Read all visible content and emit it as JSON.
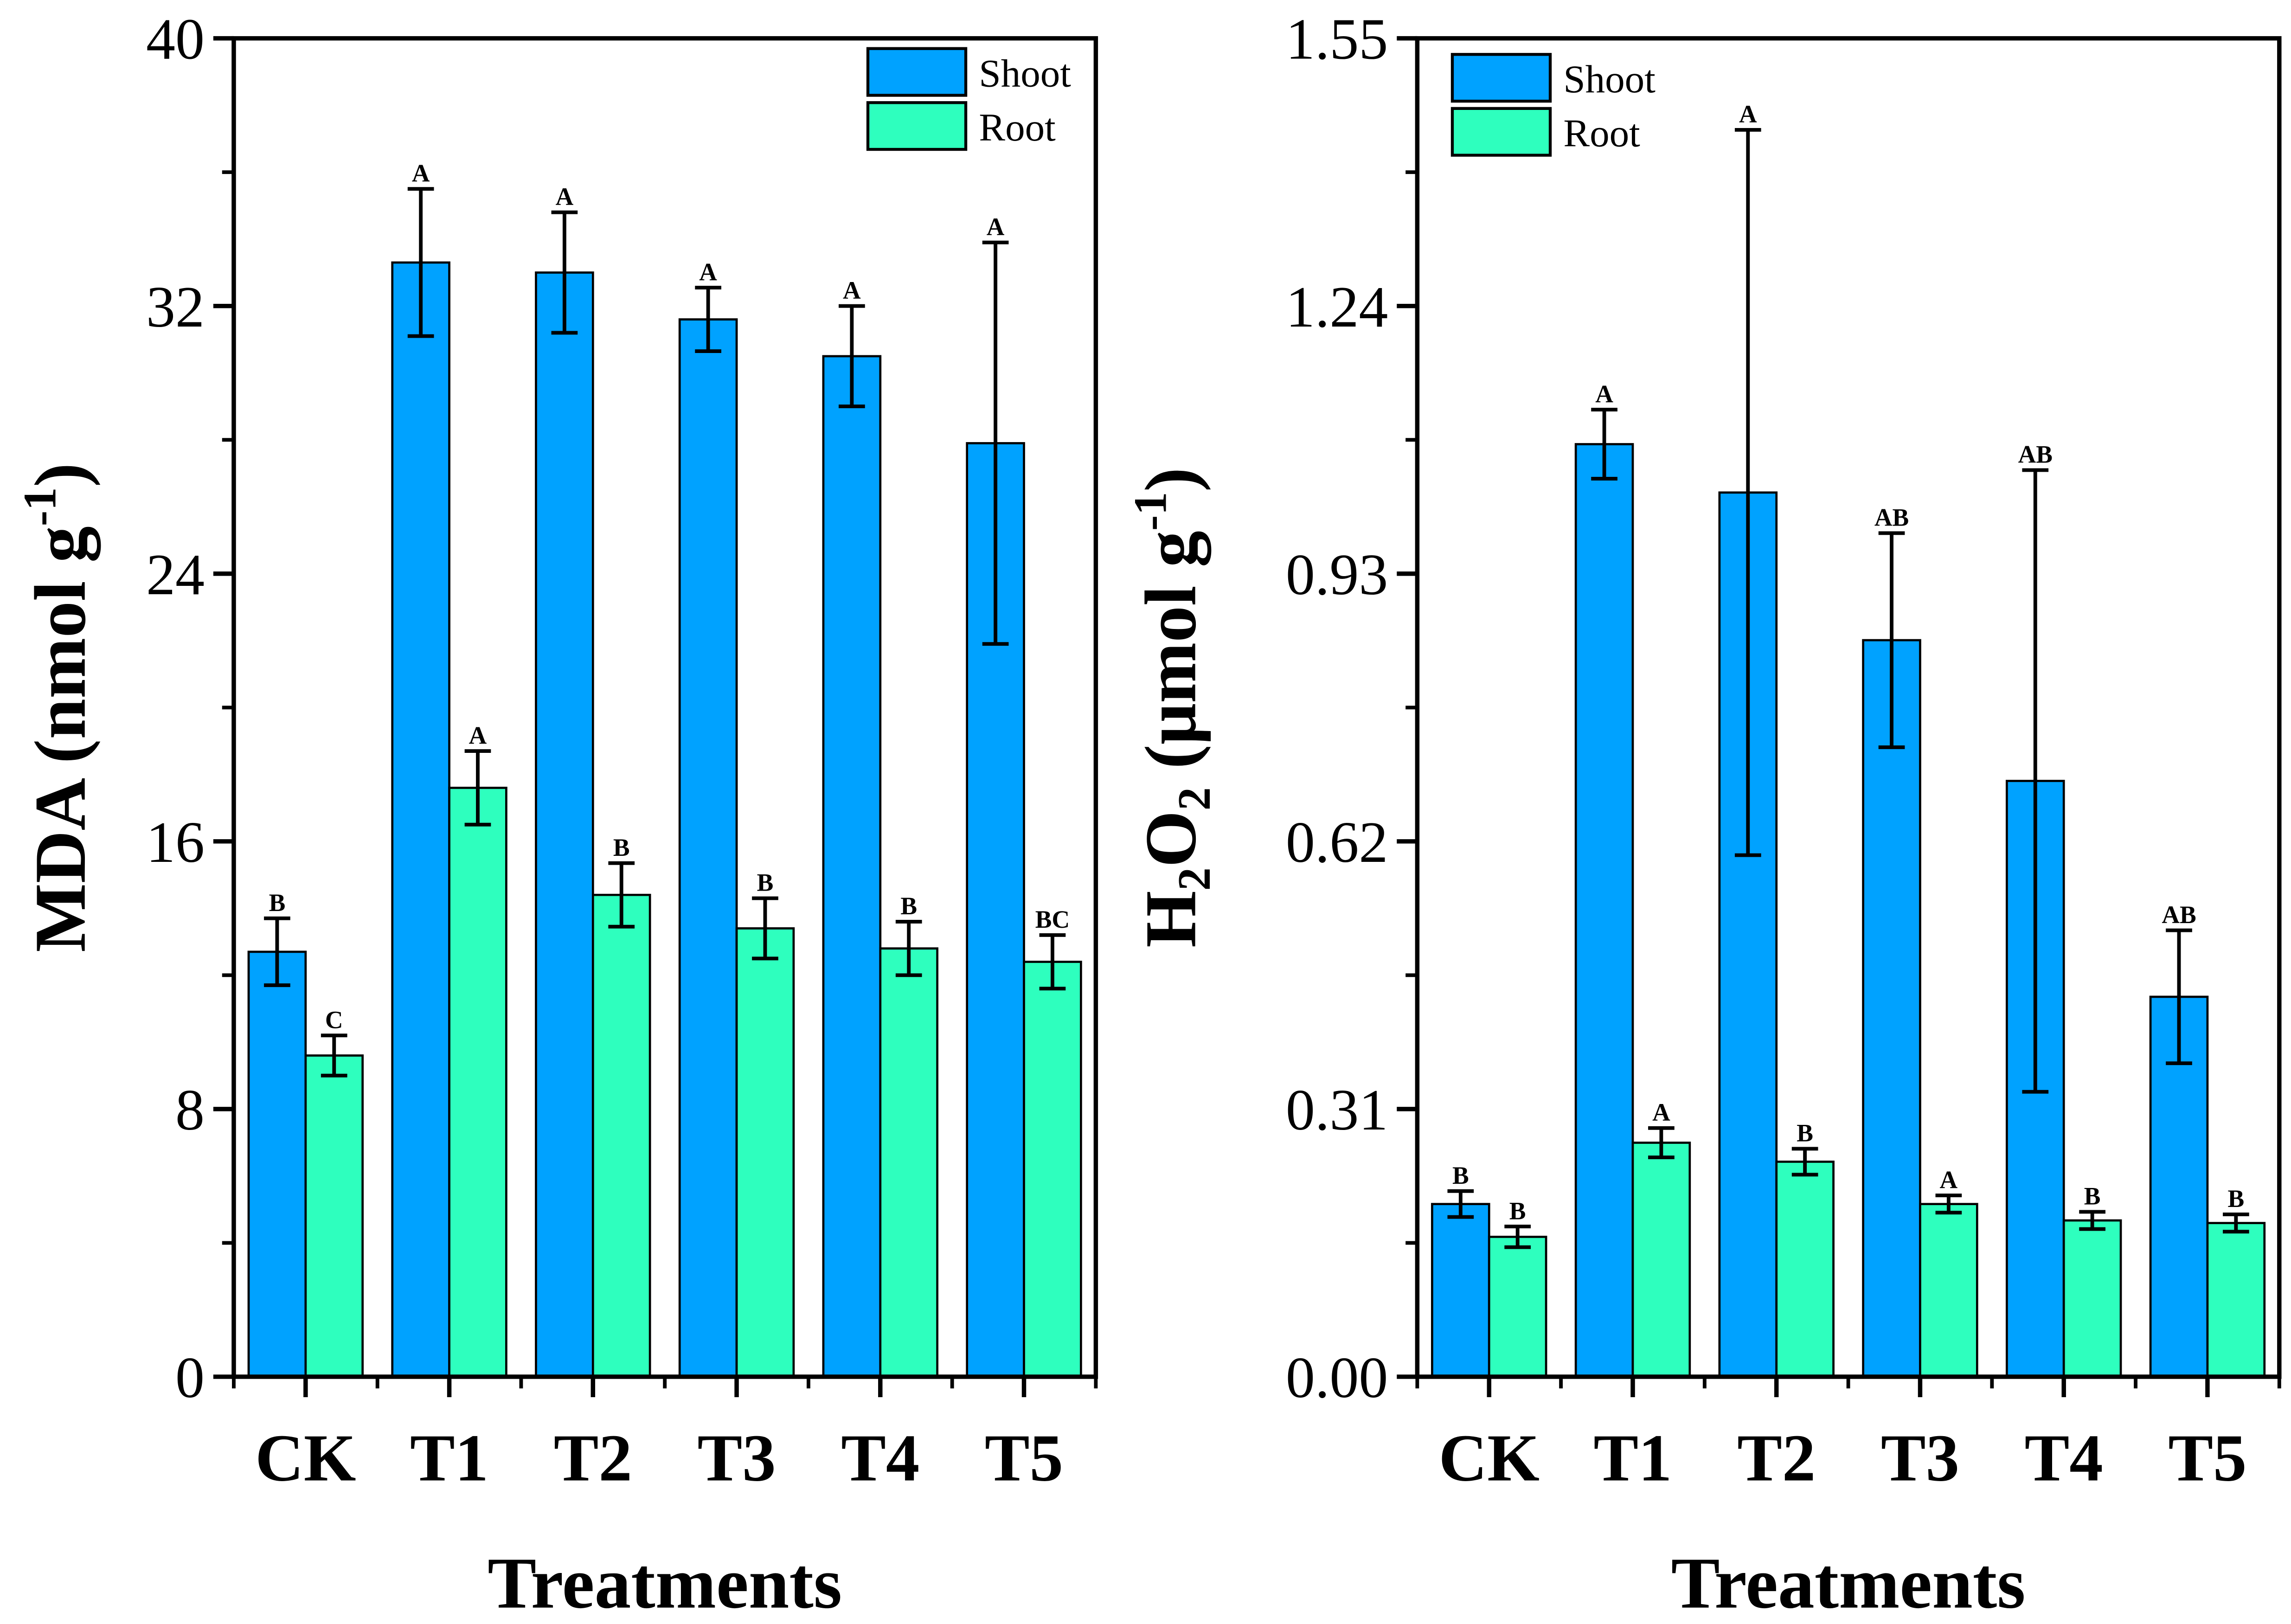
{
  "colors": {
    "shoot": "#00a2ff",
    "root": "#2effbe"
  },
  "chart_data": [
    {
      "type": "bar",
      "title": "",
      "xlabel": "Treatments",
      "ylabel": {
        "main": "MDA (nmol g",
        "sup": "-1",
        "end": ")"
      },
      "ylim": [
        0,
        40
      ],
      "yticks": [
        "0",
        "8",
        "16",
        "24",
        "32",
        "40"
      ],
      "categories": [
        "CK",
        "T1",
        "T2",
        "T3",
        "T4",
        "T5"
      ],
      "legend_position": "top-right",
      "series": [
        {
          "name": "Shoot",
          "values": [
            12.7,
            33.3,
            33.0,
            31.6,
            30.5,
            27.9
          ],
          "errors": [
            1.0,
            2.2,
            1.8,
            0.95,
            1.5,
            6.0
          ],
          "letters": [
            "B",
            "A",
            "A",
            "A",
            "A",
            "A"
          ]
        },
        {
          "name": "Root",
          "values": [
            9.6,
            17.6,
            14.4,
            13.4,
            12.8,
            12.4
          ],
          "errors": [
            0.6,
            1.1,
            0.95,
            0.9,
            0.8,
            0.8
          ],
          "letters": [
            "C",
            "A",
            "B",
            "B",
            "B",
            "BC"
          ]
        }
      ]
    },
    {
      "type": "bar",
      "title": "",
      "xlabel": "Treatments",
      "ylabel": {
        "pre": "H",
        "sub1": "2",
        "mid": "O",
        "sub2": "2",
        "main": " (μmol g",
        "sup": "-1",
        "end": ")"
      },
      "ylim": [
        0,
        1.55
      ],
      "yticks": [
        "0.00",
        "0.31",
        "0.62",
        "0.93",
        "1.24",
        "1.55"
      ],
      "categories": [
        "CK",
        "T1",
        "T2",
        "T3",
        "T4",
        "T5"
      ],
      "legend_position": "top-left",
      "series": [
        {
          "name": "Shoot",
          "values": [
            0.2,
            1.08,
            1.024,
            0.853,
            0.69,
            0.44
          ],
          "errors": [
            0.015,
            0.04,
            0.42,
            0.124,
            0.36,
            0.077
          ],
          "letters": [
            "B",
            "A",
            "A",
            "AB",
            "AB",
            "AB"
          ]
        },
        {
          "name": "Root",
          "values": [
            0.162,
            0.271,
            0.249,
            0.2,
            0.181,
            0.178
          ],
          "errors": [
            0.012,
            0.017,
            0.015,
            0.01,
            0.01,
            0.01
          ],
          "letters": [
            "B",
            "A",
            "B",
            "A",
            "B",
            "B"
          ]
        }
      ]
    }
  ]
}
